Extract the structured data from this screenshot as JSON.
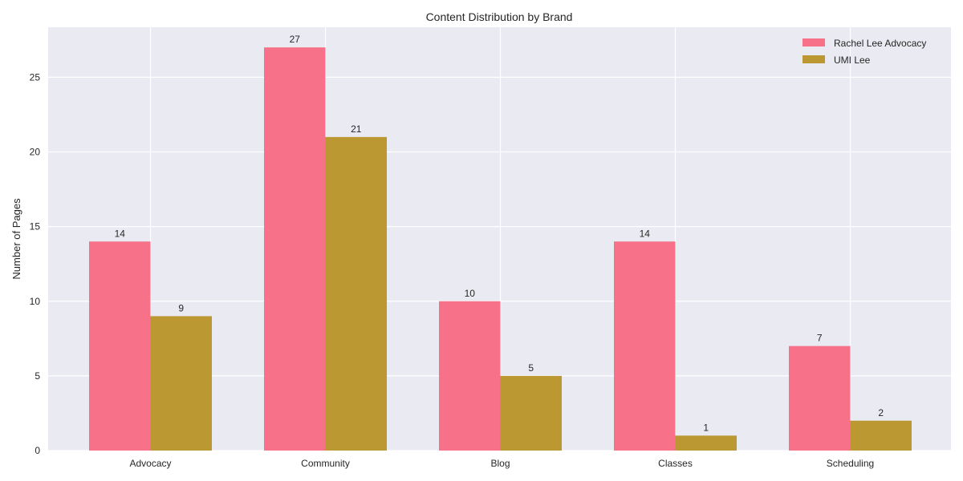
{
  "chart_data": {
    "type": "bar",
    "title": "Content Distribution by Brand",
    "xlabel": "",
    "ylabel": "Number of Pages",
    "categories": [
      "Advocacy",
      "Community",
      "Blog",
      "Classes",
      "Scheduling"
    ],
    "series": [
      {
        "name": "Rachel Lee Advocacy",
        "values": [
          14,
          27,
          10,
          14,
          7
        ],
        "color": "#f77189"
      },
      {
        "name": "UMI Lee",
        "values": [
          9,
          21,
          5,
          1,
          2
        ],
        "color": "#bb9832"
      }
    ],
    "ylim": [
      0,
      28.35
    ],
    "yticks": [
      0,
      5,
      10,
      15,
      20,
      25
    ],
    "grid": true,
    "legend_position": "top-right",
    "background_color": "#eaeaf2",
    "grid_color": "#ffffff"
  }
}
